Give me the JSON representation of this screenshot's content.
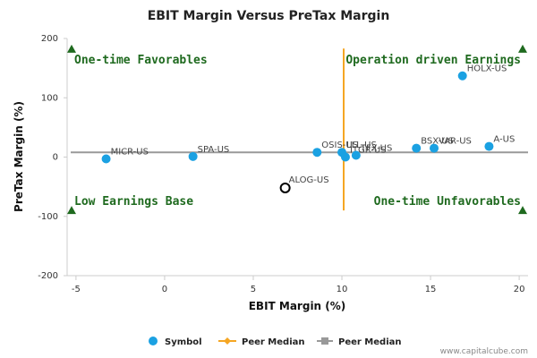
{
  "chart_data": {
    "type": "scatter",
    "title": "EBIT Margin Versus PreTax Margin",
    "xlabel": "EBIT Margin (%)",
    "ylabel": "PreTax Margin (%)",
    "xlim": [
      -5.5,
      20.5
    ],
    "ylim": [
      -200,
      200
    ],
    "x_ticks": [
      -5,
      0,
      5,
      10,
      15,
      20
    ],
    "y_ticks": [
      -200,
      -100,
      0,
      100,
      200
    ],
    "grid": false,
    "points": [
      {
        "label": "MICR-US",
        "x": -3.3,
        "y": -3
      },
      {
        "label": "SPA-US",
        "x": 1.6,
        "y": 1
      },
      {
        "label": "OSIS-US",
        "x": 8.6,
        "y": 8
      },
      {
        "label": "LLL-US",
        "x": 10.0,
        "y": 8
      },
      {
        "label": "ITGR-US",
        "x": 10.2,
        "y": 0
      },
      {
        "label": "TFX-US",
        "x": 10.8,
        "y": 3
      },
      {
        "label": "BSX-US",
        "x": 14.2,
        "y": 15
      },
      {
        "label": "VAR-US",
        "x": 15.2,
        "y": 15
      },
      {
        "label": "A-US",
        "x": 18.3,
        "y": 18
      },
      {
        "label": "HOLX-US",
        "x": 16.8,
        "y": 137
      }
    ],
    "target": {
      "label": "ALOG-US",
      "x": 6.8,
      "y": -52
    },
    "peer_median": {
      "x": 10.1,
      "y": 8,
      "y_range": [
        -90,
        183
      ],
      "x_range": [
        -5.5,
        20.5
      ]
    },
    "quadrant_labels": {
      "top_left": "One-time Favorables",
      "top_right": "Operation driven Earnings",
      "bottom_left": "Low Earnings Base",
      "bottom_right": "One-time Unfavorables"
    },
    "legend": {
      "placement": "bottom",
      "items": [
        {
          "name": "Symbol",
          "color": "#1ba1e2"
        },
        {
          "name": "Peer Median",
          "color": "#f5a623"
        },
        {
          "name": "Peer Median",
          "color": "#999999"
        }
      ]
    },
    "colors": {
      "point": "#1ba1e2",
      "vline": "#f5a623",
      "hline": "#999999",
      "marker": "#1f6a1f"
    }
  },
  "footer": {
    "credit": "www.capitalcube.com"
  }
}
